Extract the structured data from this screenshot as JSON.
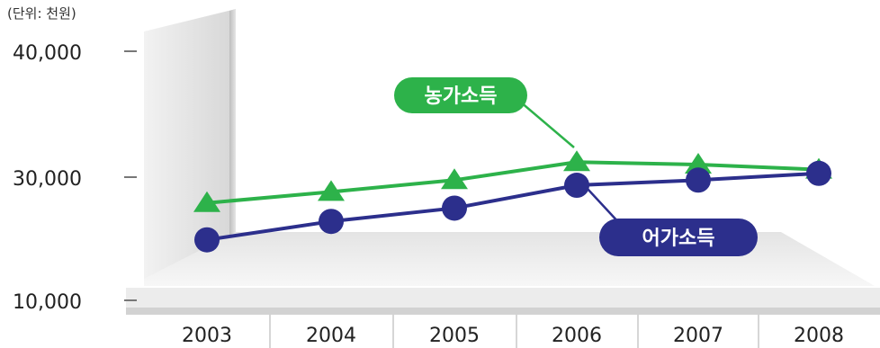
{
  "chart_data": {
    "type": "line",
    "unit_label": "(단위: 천원)",
    "x": [
      "2003",
      "2004",
      "2005",
      "2006",
      "2007",
      "2008"
    ],
    "y_ticks": [
      "40,000",
      "30,000",
      "10,000"
    ],
    "series": [
      {
        "name": "농가소득",
        "color": "#2db24a",
        "marker": "triangle",
        "values": [
          26500,
          28000,
          29600,
          31200,
          31000,
          30600
        ]
      },
      {
        "name": "어가소득",
        "color": "#2c2f8c",
        "marker": "circle",
        "values": [
          21500,
          24000,
          25800,
          28900,
          29600,
          30300
        ]
      }
    ],
    "grid": false,
    "legend": "inline-callouts"
  }
}
